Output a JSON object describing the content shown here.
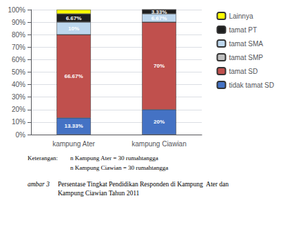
{
  "chart_data": {
    "type": "bar",
    "stacked": true,
    "categories": [
      "kampung Ater",
      "kampung Ciawian"
    ],
    "series": [
      {
        "name": "tidak tamat SD",
        "color": "#4472C4",
        "values": [
          13.33,
          20.0
        ],
        "value_labels": [
          "13.33%",
          "20%"
        ]
      },
      {
        "name": "tamat SD",
        "color": "#C0504D",
        "values": [
          66.67,
          70.0
        ],
        "value_labels": [
          "66.67%",
          "70%"
        ]
      },
      {
        "name": "tamat SMP",
        "color": "#C0C0C0",
        "values": [
          0,
          0
        ],
        "value_labels": [
          null,
          null
        ]
      },
      {
        "name": "tamat SMA",
        "color": "#BDD7EE",
        "values": [
          10.0,
          6.67
        ],
        "value_labels": [
          "10%",
          "6.67%"
        ]
      },
      {
        "name": "tamat PT",
        "color": "#1F1F1F",
        "values": [
          6.67,
          3.33
        ],
        "value_labels": [
          "6.67%",
          "3.33%"
        ]
      },
      {
        "name": "Lainnya",
        "color": "#FFFF00",
        "values": [
          3.33,
          0.0
        ],
        "value_labels": [
          null,
          null
        ]
      }
    ],
    "ylim": [
      0,
      100
    ],
    "yticks": [
      {
        "value": 0,
        "label": "0%"
      },
      {
        "value": 10,
        "label": "10%"
      },
      {
        "value": 20,
        "label": "20%"
      },
      {
        "value": 30,
        "label": "30%"
      },
      {
        "value": 40,
        "label": "40%"
      },
      {
        "value": 50,
        "label": "50%"
      },
      {
        "value": 60,
        "label": "60%"
      },
      {
        "value": 70,
        "label": "70%"
      },
      {
        "value": 80,
        "label": "80%"
      },
      {
        "value": 90,
        "label": "90%"
      },
      {
        "value": 100,
        "label": "100%"
      }
    ],
    "grid": true,
    "legend": "upper right",
    "data_labels": true,
    "annotations": [
      "Keterangan:",
      "n Kampung Ater = 30 rumahtangga",
      "n Kampung Ciawian = 30 rumahtangga",
      "ambar 3",
      "Persentase Tingkat Pendidikan Responden di Kampung  Ater dan\nKampung Ciawian Tahun 2011"
    ]
  }
}
